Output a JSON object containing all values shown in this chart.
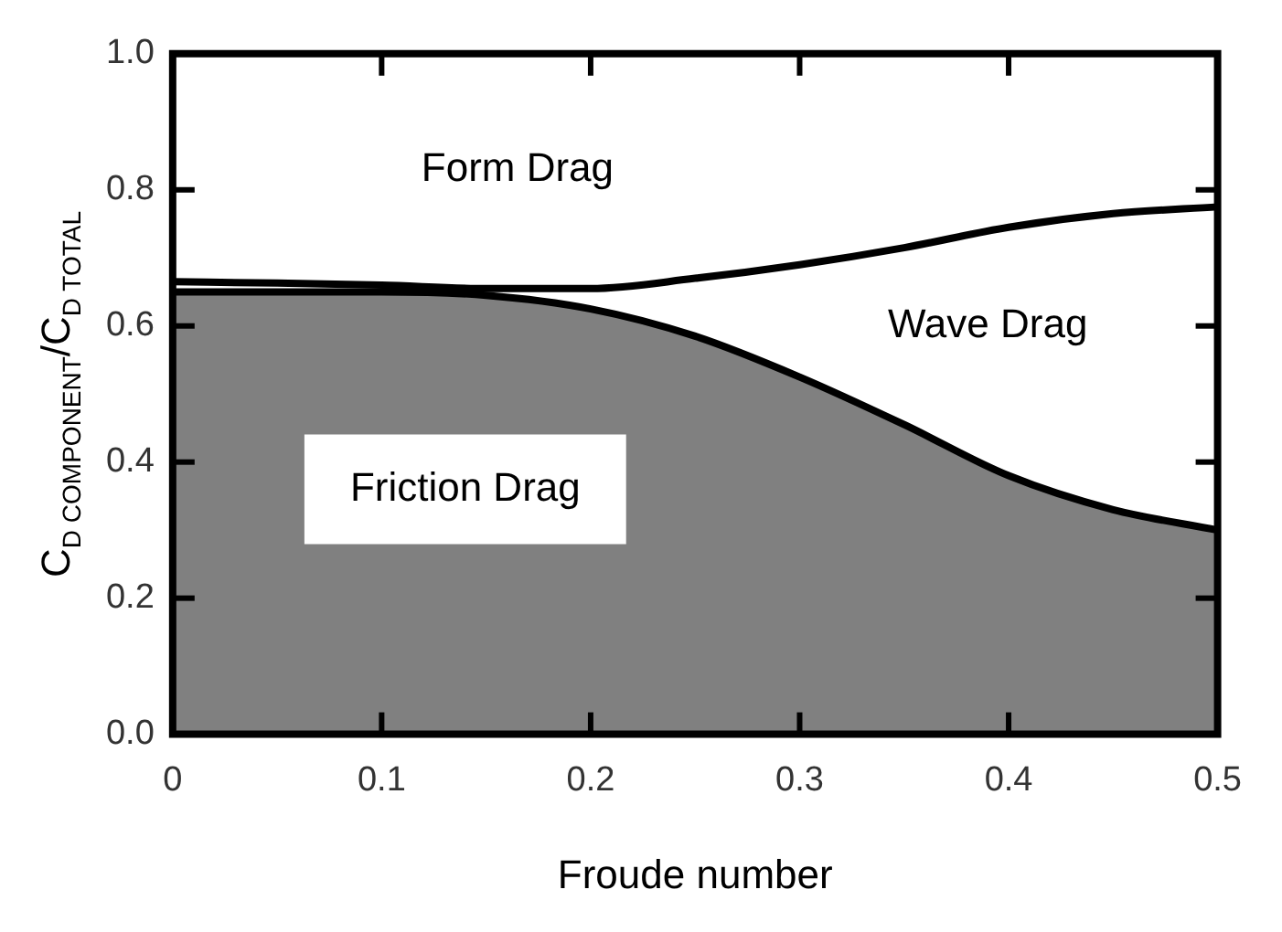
{
  "chart_data": {
    "type": "area",
    "xlabel": "Froude number",
    "ylabel": "C$_{D COMPONENT}$/C$_{D TOTAL}$",
    "x": [
      0,
      0.05,
      0.1,
      0.15,
      0.2,
      0.25,
      0.3,
      0.35,
      0.4,
      0.45,
      0.5
    ],
    "series": [
      {
        "color": "#808080",
        "values": [
          0.65,
          0.65,
          0.65,
          0.645,
          0.625,
          0.585,
          0.525,
          0.455,
          0.38,
          0.33,
          0.3
        ]
      },
      {
        "type": "line",
        "color": "#000000",
        "values": [
          0.665,
          0.663,
          0.66,
          0.655,
          0.655,
          0.67,
          0.69,
          0.715,
          0.745,
          0.765,
          0.775
        ]
      }
    ],
    "xlim": [
      0,
      0.5
    ],
    "xticks": [
      0,
      0.1,
      0.2,
      0.3,
      0.4,
      0.5
    ],
    "ylim": [
      0,
      1
    ],
    "yticks": [
      {
        "value": 0,
        "label": "0.0"
      },
      0.2,
      0.4,
      0.6,
      0.8,
      {
        "value": 1,
        "label": "1.0"
      }
    ],
    "annotations": [
      "Form Drag",
      "Wave Drag",
      "Friction Drag"
    ],
    "grid": false,
    "legend": false,
    "marker": "none",
    "line_style": "solid"
  }
}
